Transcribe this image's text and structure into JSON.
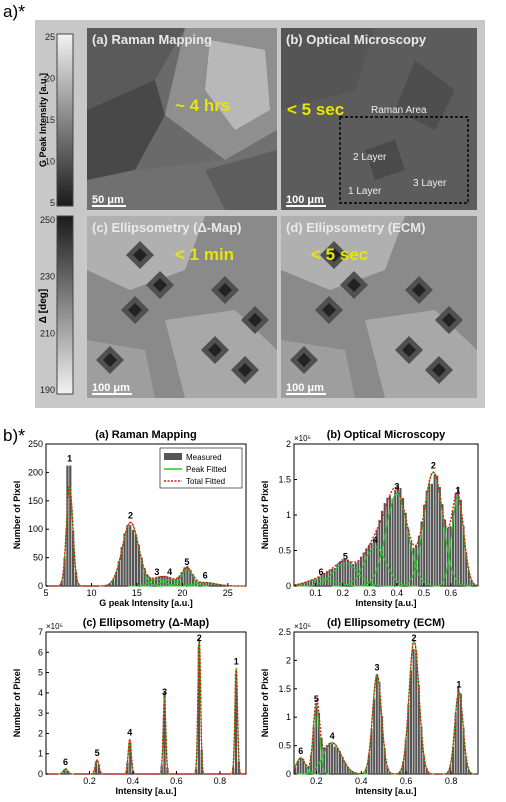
{
  "part_a": {
    "label": "a)",
    "star": "*",
    "tiles": [
      {
        "title": "(a) Raman Mapping",
        "time": "~ 4 hrs",
        "scalebar": "50 μm"
      },
      {
        "title": "(b) Optical Microscopy",
        "time": "< 5 sec",
        "scalebar": "100 μm",
        "annotations": {
          "area": "Raman Area",
          "layer2": "2 Layer",
          "layer1": "1 Layer",
          "layer3": "3 Layer"
        }
      },
      {
        "title": "(c) Ellipsometry (Δ-Map)",
        "time": "< 1 min",
        "scalebar": "100 μm"
      },
      {
        "title": "(d) Ellipsometry (ECM)",
        "time": "< 5 sec",
        "scalebar": "100 μm"
      }
    ],
    "colorbar_top": {
      "label": "G Peak Intensity [a.u.]",
      "ticks": [
        "25",
        "20",
        "15",
        "10",
        "5"
      ]
    },
    "colorbar_bottom": {
      "label": "Δ [deg]",
      "ticks": [
        "250",
        "230",
        "210",
        "190"
      ]
    }
  },
  "part_b": {
    "label": "b)",
    "star": "*"
  },
  "chart_data": [
    {
      "type": "bar",
      "title": "(a) Raman Mapping",
      "xlabel": "G peak Intensity [a.u.]",
      "ylabel": "Number of Pixel",
      "xlim": [
        5,
        27
      ],
      "ylim": [
        0,
        250
      ],
      "xticks": [
        5,
        10,
        15,
        20,
        25
      ],
      "yticks": [
        0,
        50,
        100,
        150,
        200,
        250
      ],
      "y_multiplier": "",
      "legend": [
        "Measured",
        "Peak Fitted",
        "Total Fitted"
      ],
      "legend_position": "top-right",
      "peaks": [
        {
          "label": "1",
          "x": 7.6,
          "y": 175,
          "width": 0.35
        },
        {
          "label": "2",
          "x": 14.3,
          "y": 112,
          "width": 0.9
        },
        {
          "label": "3",
          "x": 17.2,
          "y": 12,
          "width": 0.8
        },
        {
          "label": "4",
          "x": 18.6,
          "y": 12,
          "width": 0.8
        },
        {
          "label": "5",
          "x": 20.5,
          "y": 30,
          "width": 0.6
        },
        {
          "label": "6",
          "x": 22.5,
          "y": 6,
          "width": 1.2
        }
      ],
      "max_bar": {
        "x": 7.6,
        "y": 212
      }
    },
    {
      "type": "bar",
      "title": "(b) Optical Microscopy",
      "xlabel": "Intensity [a.u.]",
      "ylabel": "Number of Pixel",
      "xlim": [
        0.02,
        0.7
      ],
      "ylim": [
        0,
        2
      ],
      "xticks": [
        0.1,
        0.2,
        0.3,
        0.4,
        0.5,
        0.6
      ],
      "yticks": [
        0,
        0.5,
        1,
        1.5,
        2
      ],
      "y_multiplier": "×10⁵",
      "peaks": [
        {
          "label": "1",
          "x": 0.625,
          "y": 1.25,
          "width": 0.022
        },
        {
          "label": "2",
          "x": 0.535,
          "y": 1.6,
          "width": 0.035
        },
        {
          "label": "3",
          "x": 0.4,
          "y": 1.3,
          "width": 0.04
        },
        {
          "label": "4",
          "x": 0.32,
          "y": 0.55,
          "width": 0.04
        },
        {
          "label": "5",
          "x": 0.21,
          "y": 0.32,
          "width": 0.045
        },
        {
          "label": "6",
          "x": 0.12,
          "y": 0.1,
          "width": 0.05
        }
      ]
    },
    {
      "type": "bar",
      "title": "(c) Ellipsometry (Δ-Map)",
      "xlabel": "Intensity [a.u.]",
      "ylabel": "Number of Pixel",
      "xlim": [
        0,
        0.92
      ],
      "ylim": [
        0,
        7
      ],
      "xticks": [
        0.2,
        0.4,
        0.6,
        0.8
      ],
      "yticks": [
        0,
        1,
        2,
        3,
        4,
        5,
        6,
        7
      ],
      "y_multiplier": "×10⁵",
      "peaks": [
        {
          "label": "1",
          "x": 0.875,
          "y": 5.2,
          "width": 0.006
        },
        {
          "label": "2",
          "x": 0.705,
          "y": 6.7,
          "width": 0.006
        },
        {
          "label": "3",
          "x": 0.545,
          "y": 3.7,
          "width": 0.006
        },
        {
          "label": "4",
          "x": 0.385,
          "y": 1.7,
          "width": 0.007
        },
        {
          "label": "5",
          "x": 0.235,
          "y": 0.7,
          "width": 0.008
        },
        {
          "label": "6",
          "x": 0.09,
          "y": 0.25,
          "width": 0.01
        }
      ]
    },
    {
      "type": "bar",
      "title": "(d) Ellipsometry (ECM)",
      "xlabel": "Intensity [a.u.]",
      "ylabel": "Number of Pixel",
      "xlim": [
        0.1,
        0.92
      ],
      "ylim": [
        0,
        2.5
      ],
      "xticks": [
        0.2,
        0.4,
        0.6,
        0.8
      ],
      "yticks": [
        0,
        0.5,
        1,
        1.5,
        2,
        2.5
      ],
      "y_multiplier": "×10⁵",
      "peaks": [
        {
          "label": "1",
          "x": 0.835,
          "y": 1.45,
          "width": 0.018
        },
        {
          "label": "2",
          "x": 0.635,
          "y": 2.35,
          "width": 0.022
        },
        {
          "label": "3",
          "x": 0.47,
          "y": 1.75,
          "width": 0.02
        },
        {
          "label": "4",
          "x": 0.27,
          "y": 0.55,
          "width": 0.04
        },
        {
          "label": "5",
          "x": 0.2,
          "y": 1.2,
          "width": 0.014
        },
        {
          "label": "6",
          "x": 0.13,
          "y": 0.28,
          "width": 0.02
        }
      ]
    }
  ]
}
